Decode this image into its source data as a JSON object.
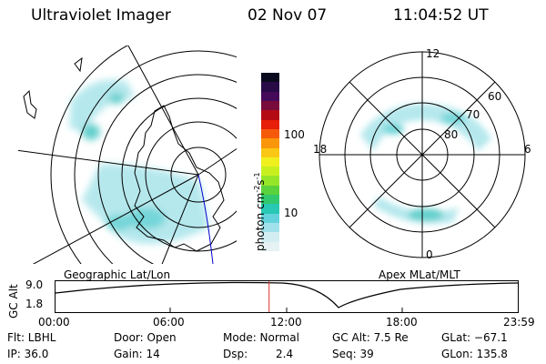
{
  "header": {
    "title": "Ultraviolet Imager",
    "date": "02 Nov 07",
    "time": "11:04:52 UT"
  },
  "left_panel": {
    "label": "Geographic Lat/Lon"
  },
  "right_panel": {
    "label": "Apex MLat/MLT",
    "mlt_labels": {
      "top": "12",
      "left": "18",
      "right": "6",
      "bottom": "0"
    },
    "lat_labels": [
      "60",
      "70",
      "80"
    ]
  },
  "colorbar": {
    "unit_label": "photon cm",
    "unit_exp1": "-2",
    "unit_s": "s",
    "unit_exp2": "-1",
    "ticks": [
      "100",
      "10"
    ],
    "colors": [
      "#0a0a1e",
      "#280a46",
      "#460a5a",
      "#780a3c",
      "#b40a14",
      "#e61e0a",
      "#f55a0a",
      "#fa960a",
      "#fac814",
      "#f0f01e",
      "#c8f01e",
      "#96e628",
      "#5ad23c",
      "#32c86e",
      "#28c8b4",
      "#64d2dc",
      "#a0e1eb",
      "#d2eef2",
      "#e6f2f4"
    ]
  },
  "timeline": {
    "axis_label": "GC Alt",
    "y_top": "9.0",
    "y_bottom": "1.8",
    "x_ticks": [
      "00:00",
      "06:00",
      "12:00",
      "18:00",
      "23:59"
    ],
    "current_time_fraction": 0.462
  },
  "info": {
    "row1": {
      "flt": "Flt: LBHL",
      "door": "Door: Open",
      "mode": "Mode: Normal",
      "gcalt": "GC Alt: 7.5 Re",
      "glat": "GLat: −67.1"
    },
    "row2": {
      "ip": "IP: 36.0",
      "gain": "Gain: 14",
      "dsp_label": "Dsp:",
      "dsp_value": "2.4",
      "seq": "Seq: 39",
      "glon": "GLon: 135.8"
    }
  }
}
